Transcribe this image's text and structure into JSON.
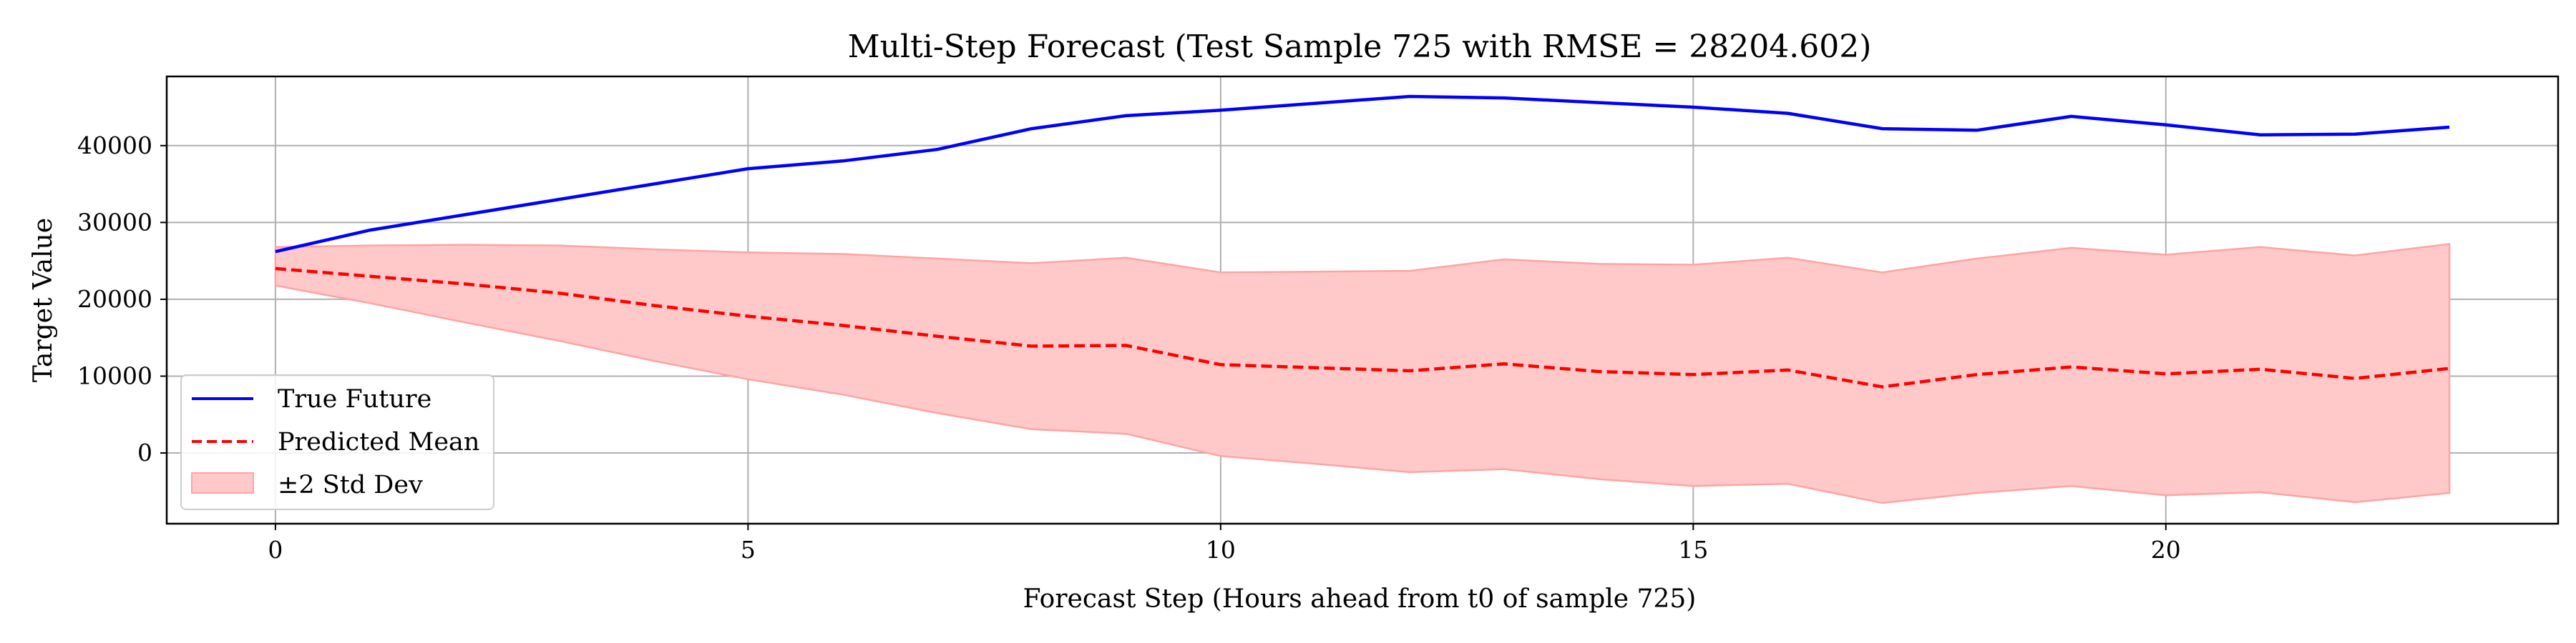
{
  "chart_data": {
    "type": "line",
    "title": "Multi-Step Forecast (Test Sample 725 with RMSE = 28204.602)",
    "xlabel": "Forecast Step (Hours ahead from t0 of sample 725)",
    "ylabel": "Target Value",
    "xlim": [
      -1.15,
      24.15
    ],
    "ylim": [
      -9200,
      49000
    ],
    "xticks": [
      0,
      5,
      10,
      15,
      20
    ],
    "yticks": [
      0,
      10000,
      20000,
      30000,
      40000
    ],
    "grid": true,
    "legend_position": "bottom-left",
    "x": [
      0,
      1,
      2,
      3,
      4,
      5,
      6,
      7,
      8,
      9,
      10,
      11,
      12,
      13,
      14,
      15,
      16,
      17,
      18,
      19,
      20,
      21,
      22,
      23
    ],
    "series": [
      {
        "name": "True Future",
        "style": "solid",
        "color": "#0000ff",
        "values": [
          26200,
          29000,
          31000,
          33000,
          35000,
          37000,
          38000,
          39500,
          42200,
          43900,
          44600,
          45500,
          46400,
          46200,
          45600,
          45000,
          44200,
          42200,
          42000,
          43800,
          42700,
          41400,
          41500,
          42400
        ]
      },
      {
        "name": "Predicted Mean",
        "style": "dashed",
        "color": "#ff0000",
        "values": [
          24000,
          23000,
          22000,
          20800,
          19200,
          17800,
          16600,
          15200,
          13900,
          14000,
          11500,
          11100,
          10700,
          11600,
          10600,
          10200,
          10800,
          8600,
          10200,
          11200,
          10300,
          10900,
          9700,
          11000
        ]
      }
    ],
    "band": {
      "name": "±2 Std Dev",
      "color": "#ffc9c9",
      "edge_color": "#ffa3a3",
      "upper": [
        26800,
        27000,
        27100,
        27000,
        26500,
        26100,
        25900,
        25300,
        24700,
        25400,
        23500,
        23600,
        23700,
        25200,
        24600,
        24500,
        25400,
        23500,
        25300,
        26700,
        25800,
        26800,
        25700,
        27200
      ],
      "lower": [
        21800,
        19500,
        17000,
        14600,
        12000,
        9600,
        7600,
        5200,
        3100,
        2500,
        -400,
        -1400,
        -2500,
        -2100,
        -3400,
        -4300,
        -4000,
        -6500,
        -5200,
        -4300,
        -5500,
        -5100,
        -6400,
        -5200
      ]
    }
  }
}
